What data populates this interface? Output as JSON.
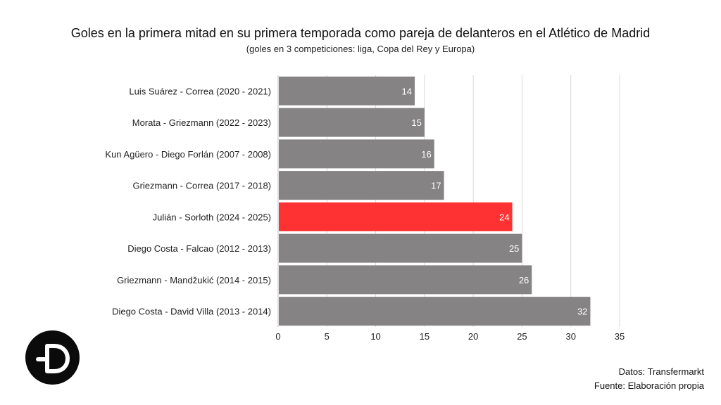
{
  "header": {
    "title": "Goles en la primera mitad en su primera temporada como pareja de delanteros en el Atlético de Madrid",
    "subtitle": "(goles en 3 competiciones: liga, Copa del Rey y Europa)"
  },
  "footer": {
    "source_data": "Datos: Transfermarkt",
    "source_origin": "Fuente: Elaboración propia"
  },
  "colors": {
    "bar": "#858384",
    "highlight": "#fe3233",
    "grid": "#d9d9d9",
    "logo": "#0b0b0b"
  },
  "chart_data": {
    "type": "bar",
    "orientation": "horizontal",
    "title": "Goles en la primera mitad en su primera temporada como pareja de delanteros en el Atlético de Madrid",
    "subtitle": "(goles en 3 competiciones: liga, Copa del Rey y Europa)",
    "xlabel": "",
    "ylabel": "",
    "categories": [
      "Luis Suárez - Correa (2020 - 2021)",
      "Morata - Griezmann (2022 - 2023)",
      "Kun Agüero - Diego Forlán (2007 - 2008)",
      "Griezmann - Correa (2017 - 2018)",
      "Julián - Sorloth (2024 - 2025)",
      "Diego Costa - Falcao (2012 - 2013)",
      "Griezmann - Mandžukić (2014 - 2015)",
      "Diego Costa - David Villa (2013 - 2014)"
    ],
    "values": [
      14,
      15,
      16,
      17,
      24,
      25,
      26,
      32
    ],
    "highlight_index": 4,
    "xlim": [
      0,
      35
    ],
    "xticks": [
      0,
      5,
      10,
      15,
      20,
      25,
      30,
      35
    ],
    "grid": "vertical",
    "legend": "none"
  }
}
